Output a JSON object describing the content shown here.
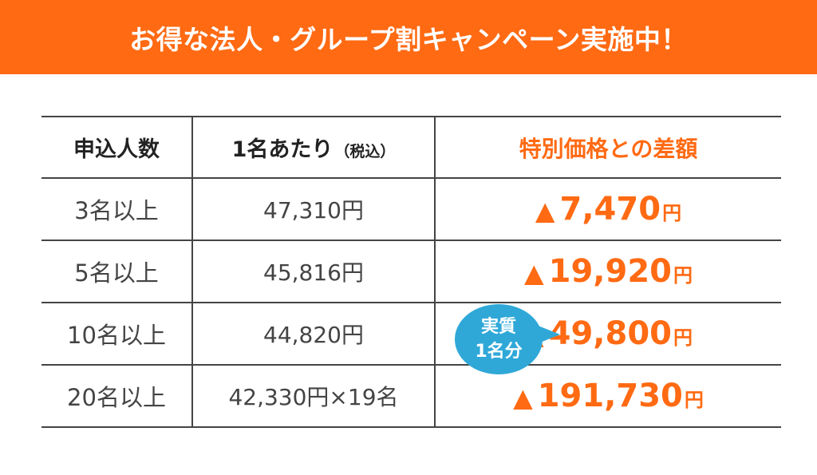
{
  "banner": {
    "title": "お得な法人・グループ割キャンペーン実施中！"
  },
  "table": {
    "headers": {
      "count": "申込人数",
      "unit": "1名あたり",
      "unit_note": "（税込）",
      "diff": "特別価格との差額"
    },
    "rows": [
      {
        "count": "3名以上",
        "unit": "47,310円",
        "diff_mark": "▲",
        "diff": "7,470",
        "diff_unit": "円"
      },
      {
        "count": "5名以上",
        "unit": "45,816円",
        "diff_mark": "▲",
        "diff": "19,920",
        "diff_unit": "円"
      },
      {
        "count": "10名以上",
        "unit": "44,820円",
        "diff_mark": "▲",
        "diff": "49,800",
        "diff_unit": "円"
      },
      {
        "count": "20名以上",
        "unit": "42,330円×19名",
        "diff_mark": "▲",
        "diff": "191,730",
        "diff_unit": "円"
      }
    ]
  },
  "badge": {
    "line1": "実質",
    "line2": "1名分"
  },
  "colors": {
    "accent": "#ff6a13",
    "badge": "#2fa8d8",
    "rule": "#444444"
  }
}
